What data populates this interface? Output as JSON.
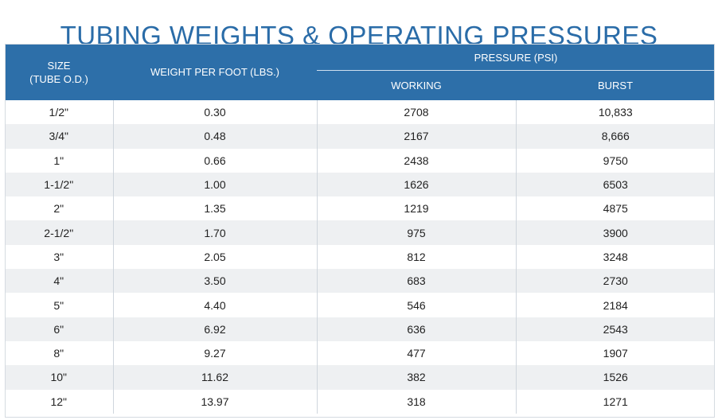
{
  "title": "TUBING WEIGHTS & OPERATING PRESSURES",
  "headers": {
    "size_line1": "SIZE",
    "size_line2": "(TUBE O.D.)",
    "weight": "WEIGHT PER FOOT (LBS.)",
    "pressure": "PRESSURE (PSI)",
    "working": "WORKING",
    "burst": "BURST"
  },
  "rows": [
    {
      "size": "1/2\"",
      "weight": "0.30",
      "working": "2708",
      "burst": "10,833"
    },
    {
      "size": "3/4\"",
      "weight": "0.48",
      "working": "2167",
      "burst": "8,666"
    },
    {
      "size": "1\"",
      "weight": "0.66",
      "working": "2438",
      "burst": "9750"
    },
    {
      "size": "1-1/2\"",
      "weight": "1.00",
      "working": "1626",
      "burst": "6503"
    },
    {
      "size": "2\"",
      "weight": "1.35",
      "working": "1219",
      "burst": "4875"
    },
    {
      "size": "2-1/2\"",
      "weight": "1.70",
      "working": "975",
      "burst": "3900"
    },
    {
      "size": "3\"",
      "weight": "2.05",
      "working": "812",
      "burst": "3248"
    },
    {
      "size": "4\"",
      "weight": "3.50",
      "working": "683",
      "burst": "2730"
    },
    {
      "size": "5\"",
      "weight": "4.40",
      "working": "546",
      "burst": "2184"
    },
    {
      "size": "6\"",
      "weight": "6.92",
      "working": "636",
      "burst": "2543"
    },
    {
      "size": "8\"",
      "weight": "9.27",
      "working": "477",
      "burst": "1907"
    },
    {
      "size": "10\"",
      "weight": "11.62",
      "working": "382",
      "burst": "1526"
    },
    {
      "size": "12\"",
      "weight": "13.97",
      "working": "318",
      "burst": "1271"
    }
  ],
  "colors": {
    "header_bg": "#2d6fa9",
    "title": "#2a6ca8",
    "stripe": "#eef0f2"
  }
}
